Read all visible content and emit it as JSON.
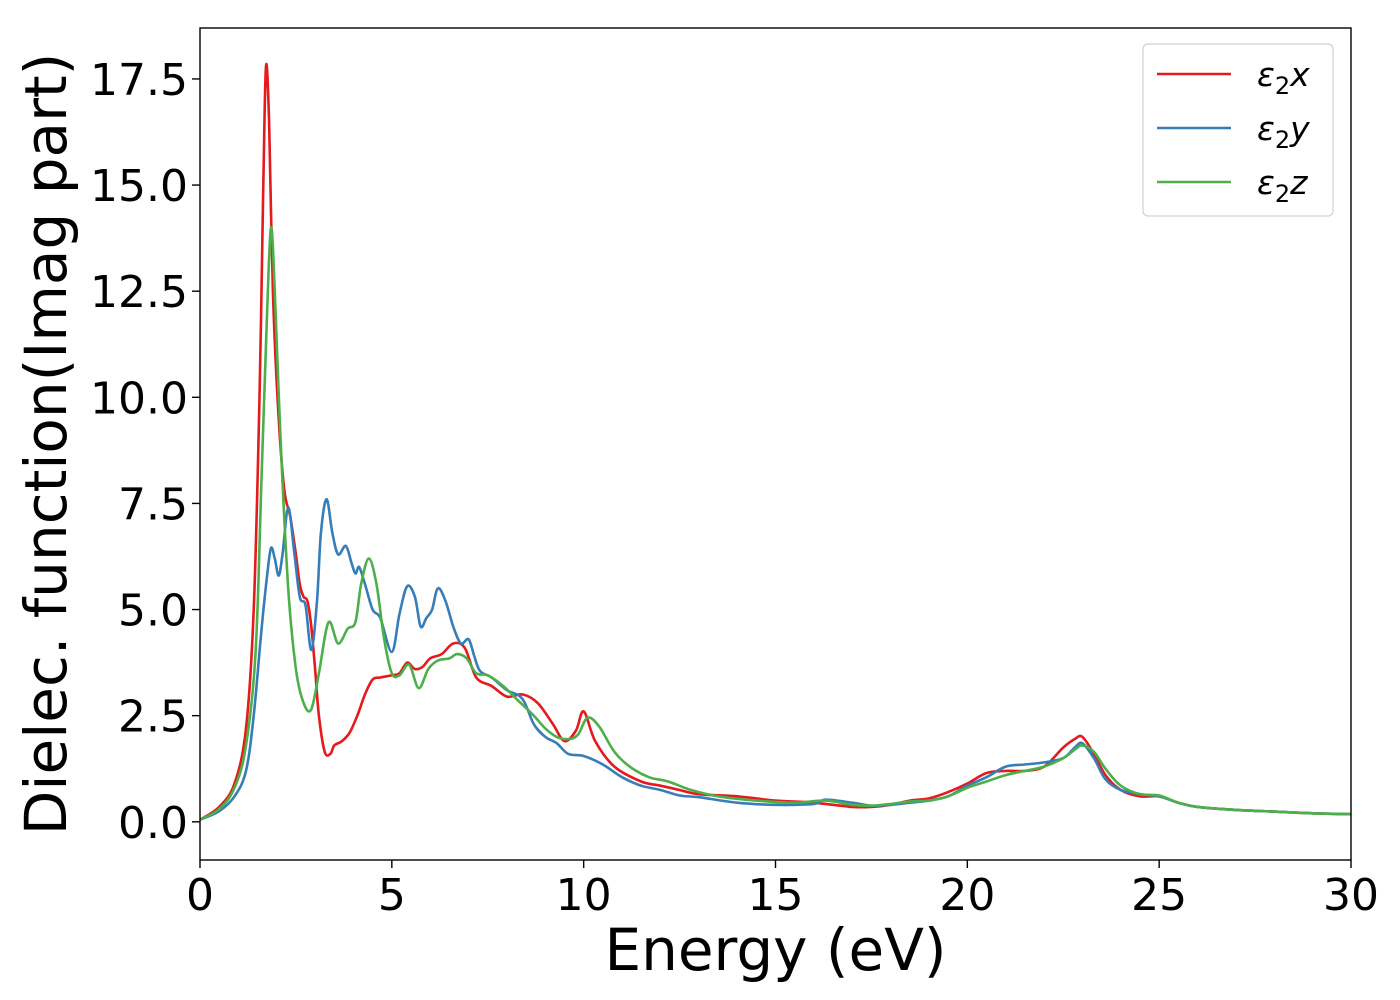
{
  "chart_data": {
    "type": "line",
    "title": "",
    "xlabel": "Energy (eV)",
    "ylabel": "Dielec. function(Imag part)",
    "xlim": [
      0,
      30
    ],
    "ylim": [
      -0.9,
      18.7
    ],
    "xticks": [
      0,
      5,
      10,
      15,
      20,
      25,
      30
    ],
    "xtick_labels": [
      "0",
      "5",
      "10",
      "15",
      "20",
      "25",
      "30"
    ],
    "yticks": [
      0.0,
      2.5,
      5.0,
      7.5,
      10.0,
      12.5,
      15.0,
      17.5
    ],
    "ytick_labels": [
      "0.0",
      "2.5",
      "5.0",
      "7.5",
      "10.0",
      "12.5",
      "15.0",
      "17.5"
    ],
    "grid": false,
    "legend_position": "top-right",
    "series": [
      {
        "name": "ε2x",
        "legend_base": "ε",
        "legend_sub": "2",
        "legend_var": "x",
        "color": "#e41a1c",
        "x": [
          0,
          0.5,
          0.9,
          1.2,
          1.4,
          1.55,
          1.65,
          1.72,
          1.8,
          1.9,
          2.05,
          2.2,
          2.35,
          2.5,
          2.6,
          2.7,
          2.8,
          2.9,
          3.0,
          3.1,
          3.25,
          3.4,
          3.5,
          3.7,
          3.9,
          4.1,
          4.3,
          4.5,
          4.7,
          5.0,
          5.2,
          5.4,
          5.6,
          5.8,
          6.0,
          6.3,
          6.6,
          6.9,
          7.2,
          7.6,
          8.0,
          8.4,
          8.8,
          9.2,
          9.5,
          9.8,
          10.0,
          10.3,
          10.8,
          11.5,
          12.0,
          12.5,
          13.0,
          14.0,
          15.0,
          16.0,
          17.0,
          17.5,
          18.0,
          18.5,
          19.0,
          19.5,
          20.0,
          20.5,
          21.0,
          21.5,
          22.0,
          22.5,
          22.8,
          23.0,
          23.3,
          23.6,
          24.0,
          24.5,
          25.0,
          25.5,
          26.0,
          27.0,
          28.0,
          29.0,
          30.0
        ],
        "y": [
          0.05,
          0.35,
          0.9,
          2.2,
          5.0,
          10.0,
          15.0,
          17.8,
          16.5,
          12.5,
          9.5,
          7.8,
          7.2,
          6.3,
          5.6,
          5.3,
          5.2,
          4.6,
          3.6,
          2.5,
          1.65,
          1.6,
          1.8,
          1.9,
          2.1,
          2.5,
          3.0,
          3.35,
          3.4,
          3.45,
          3.5,
          3.75,
          3.6,
          3.65,
          3.85,
          3.95,
          4.2,
          4.1,
          3.4,
          3.2,
          2.95,
          3.0,
          2.8,
          2.3,
          1.9,
          2.15,
          2.6,
          1.9,
          1.3,
          0.95,
          0.85,
          0.75,
          0.65,
          0.6,
          0.5,
          0.45,
          0.35,
          0.35,
          0.4,
          0.5,
          0.55,
          0.7,
          0.9,
          1.15,
          1.2,
          1.2,
          1.3,
          1.75,
          1.95,
          2.0,
          1.6,
          1.1,
          0.75,
          0.6,
          0.6,
          0.45,
          0.35,
          0.28,
          0.24,
          0.2,
          0.18
        ]
      },
      {
        "name": "ε2y",
        "legend_base": "ε",
        "legend_sub": "2",
        "legend_var": "y",
        "color": "#377eb8",
        "x": [
          0,
          0.5,
          0.9,
          1.2,
          1.4,
          1.6,
          1.75,
          1.85,
          1.95,
          2.05,
          2.15,
          2.3,
          2.45,
          2.6,
          2.75,
          2.9,
          3.05,
          3.15,
          3.3,
          3.45,
          3.6,
          3.8,
          3.95,
          4.05,
          4.15,
          4.3,
          4.5,
          4.7,
          5.0,
          5.2,
          5.4,
          5.6,
          5.75,
          5.9,
          6.05,
          6.2,
          6.4,
          6.6,
          6.8,
          7.0,
          7.15,
          7.3,
          7.6,
          8.0,
          8.4,
          8.7,
          9.0,
          9.3,
          9.6,
          10.0,
          10.5,
          11.0,
          11.5,
          12.0,
          12.5,
          13.0,
          14.0,
          15.0,
          16.0,
          16.3,
          17.0,
          17.5,
          18.0,
          18.5,
          19.0,
          19.5,
          20.0,
          20.5,
          21.0,
          21.5,
          22.0,
          22.5,
          22.8,
          23.0,
          23.3,
          23.6,
          24.0,
          24.5,
          25.0,
          25.5,
          26.0,
          27.0,
          28.0,
          29.0,
          30.0
        ],
        "y": [
          0.05,
          0.25,
          0.6,
          1.2,
          2.5,
          4.5,
          5.8,
          6.45,
          6.2,
          5.8,
          6.3,
          7.4,
          6.4,
          5.3,
          5.1,
          4.05,
          5.2,
          6.8,
          7.6,
          6.8,
          6.3,
          6.5,
          6.1,
          5.85,
          6.0,
          5.6,
          5.0,
          4.8,
          4.0,
          4.9,
          5.55,
          5.3,
          4.6,
          4.8,
          5.0,
          5.5,
          5.2,
          4.6,
          4.2,
          4.3,
          3.9,
          3.55,
          3.4,
          3.1,
          2.9,
          2.3,
          2.0,
          1.85,
          1.6,
          1.55,
          1.35,
          1.05,
          0.85,
          0.75,
          0.62,
          0.58,
          0.45,
          0.4,
          0.42,
          0.52,
          0.45,
          0.38,
          0.4,
          0.45,
          0.5,
          0.6,
          0.85,
          1.05,
          1.3,
          1.35,
          1.4,
          1.5,
          1.75,
          1.85,
          1.5,
          1.0,
          0.75,
          0.65,
          0.6,
          0.45,
          0.35,
          0.28,
          0.24,
          0.2,
          0.18
        ]
      },
      {
        "name": "ε2z",
        "legend_base": "ε",
        "legend_sub": "2",
        "legend_var": "z",
        "color": "#4daf4a",
        "x": [
          0,
          0.5,
          0.9,
          1.2,
          1.45,
          1.6,
          1.75,
          1.85,
          1.95,
          2.1,
          2.3,
          2.5,
          2.7,
          2.9,
          3.1,
          3.35,
          3.6,
          3.85,
          4.05,
          4.2,
          4.4,
          4.6,
          4.8,
          5.0,
          5.2,
          5.45,
          5.7,
          5.95,
          6.2,
          6.5,
          6.7,
          6.95,
          7.2,
          7.5,
          7.9,
          8.3,
          8.7,
          9.0,
          9.3,
          9.6,
          9.85,
          10.1,
          10.4,
          10.8,
          11.2,
          11.7,
          12.2,
          12.8,
          13.5,
          14.5,
          15.5,
          16.3,
          17.0,
          17.5,
          18.0,
          18.5,
          19.0,
          19.5,
          20.0,
          20.5,
          21.0,
          21.5,
          22.0,
          22.5,
          22.8,
          23.0,
          23.3,
          23.6,
          24.0,
          24.5,
          25.0,
          25.5,
          26.0,
          27.0,
          28.0,
          29.0,
          30.0
        ],
        "y": [
          0.05,
          0.3,
          0.8,
          1.8,
          4.0,
          8.0,
          12.0,
          14.0,
          12.5,
          9.0,
          5.5,
          3.6,
          2.8,
          2.65,
          3.5,
          4.7,
          4.2,
          4.55,
          4.7,
          5.6,
          6.2,
          5.6,
          4.3,
          3.5,
          3.45,
          3.7,
          3.15,
          3.6,
          3.8,
          3.85,
          3.95,
          3.85,
          3.5,
          3.45,
          3.2,
          2.85,
          2.5,
          2.2,
          2.0,
          1.95,
          2.05,
          2.45,
          2.25,
          1.65,
          1.3,
          1.05,
          0.95,
          0.75,
          0.6,
          0.5,
          0.45,
          0.5,
          0.4,
          0.38,
          0.42,
          0.48,
          0.5,
          0.6,
          0.8,
          0.95,
          1.1,
          1.2,
          1.3,
          1.5,
          1.7,
          1.8,
          1.65,
          1.25,
          0.85,
          0.65,
          0.62,
          0.45,
          0.35,
          0.28,
          0.24,
          0.2,
          0.18
        ]
      }
    ]
  }
}
